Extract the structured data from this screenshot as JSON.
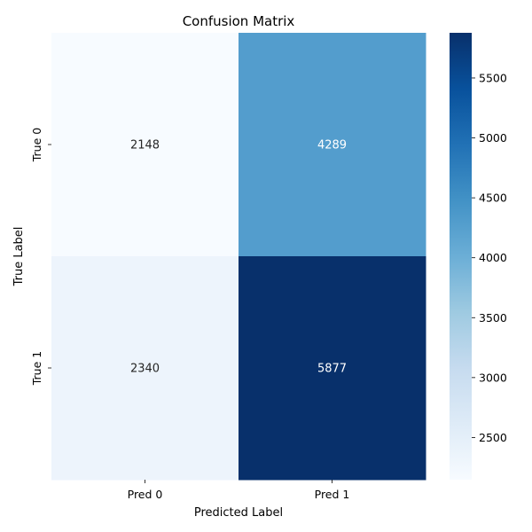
{
  "chart_data": {
    "type": "heatmap",
    "title": "Confusion Matrix",
    "xlabel": "Predicted Label",
    "ylabel": "True Label",
    "x_categories": [
      "Pred 0",
      "Pred 1"
    ],
    "y_categories": [
      "True 0",
      "True 1"
    ],
    "values": [
      [
        2148,
        4289
      ],
      [
        2340,
        5877
      ]
    ],
    "colormap": "Blues",
    "color_range": [
      2148,
      5877
    ],
    "colorbar_ticks": [
      2500,
      3000,
      3500,
      4000,
      4500,
      5000,
      5500
    ],
    "colors": {
      "low": "#f7fbff",
      "high": "#08306b",
      "text_dark": "#262626",
      "text_light": "#ffffff"
    }
  }
}
